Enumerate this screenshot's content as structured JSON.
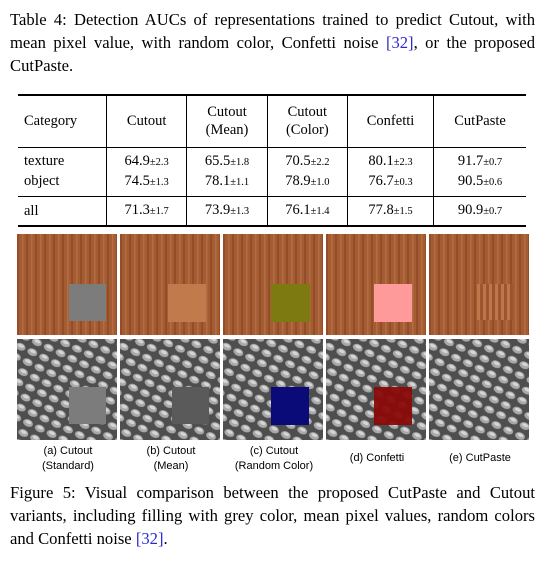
{
  "table_caption": {
    "text": "Table 4: Detection AUCs of representations trained to predict Cutout, with mean pixel value, with random color, Confetti noise ",
    "ref": "[32]",
    "text_end": ", or the proposed CutPaste."
  },
  "table": {
    "headers": {
      "category": "Category",
      "cutout": "Cutout",
      "cutout_mean": [
        "Cutout",
        "(Mean)"
      ],
      "cutout_color": [
        "Cutout",
        "(Color)"
      ],
      "confetti": "Confetti",
      "cutpaste": "CutPaste"
    },
    "rows": [
      {
        "category": "texture",
        "cells": [
          {
            "v": "64.9",
            "s": "±2.3"
          },
          {
            "v": "65.5",
            "s": "±1.8"
          },
          {
            "v": "70.5",
            "s": "±2.2"
          },
          {
            "v": "80.1",
            "s": "±2.3"
          },
          {
            "v": "91.7",
            "s": "±0.7"
          }
        ]
      },
      {
        "category": "object",
        "cells": [
          {
            "v": "74.5",
            "s": "±1.3"
          },
          {
            "v": "78.1",
            "s": "±1.1"
          },
          {
            "v": "78.9",
            "s": "±1.0"
          },
          {
            "v": "76.7",
            "s": "±0.3"
          },
          {
            "v": "90.5",
            "s": "±0.6"
          }
        ]
      }
    ],
    "total": {
      "category": "all",
      "cells": [
        {
          "v": "71.3",
          "s": "±1.7"
        },
        {
          "v": "73.9",
          "s": "±1.3"
        },
        {
          "v": "76.1",
          "s": "±1.4"
        },
        {
          "v": "77.8",
          "s": "±1.5"
        },
        {
          "v": "90.9",
          "s": "±0.7"
        }
      ]
    }
  },
  "figure": {
    "colors": {
      "wood": "#a45c33",
      "grid": "#5e5e5e",
      "grey_patch": "#7c7c7c",
      "mean_patch": "#c07a4c",
      "random_patch_row1": "#7e7a12",
      "random_patch_row2": "#0a0a78",
      "confetti_patch_row1": "#ff9a9a",
      "confetti_patch_row2": "#8a0a0a"
    },
    "labels": [
      [
        "(a) Cutout",
        "(Standard)"
      ],
      [
        "(b) Cutout",
        "(Mean)"
      ],
      [
        "(c) Cutout",
        "(Random Color)"
      ],
      [
        "(d) Confetti"
      ],
      [
        "(e) CutPaste"
      ]
    ]
  },
  "figure_caption": {
    "text": "Figure 5: Visual comparison between the proposed CutPaste and Cutout variants, including filling with grey color, mean pixel values, random colors and Confetti noise ",
    "ref": "[32]",
    "text_end": "."
  }
}
